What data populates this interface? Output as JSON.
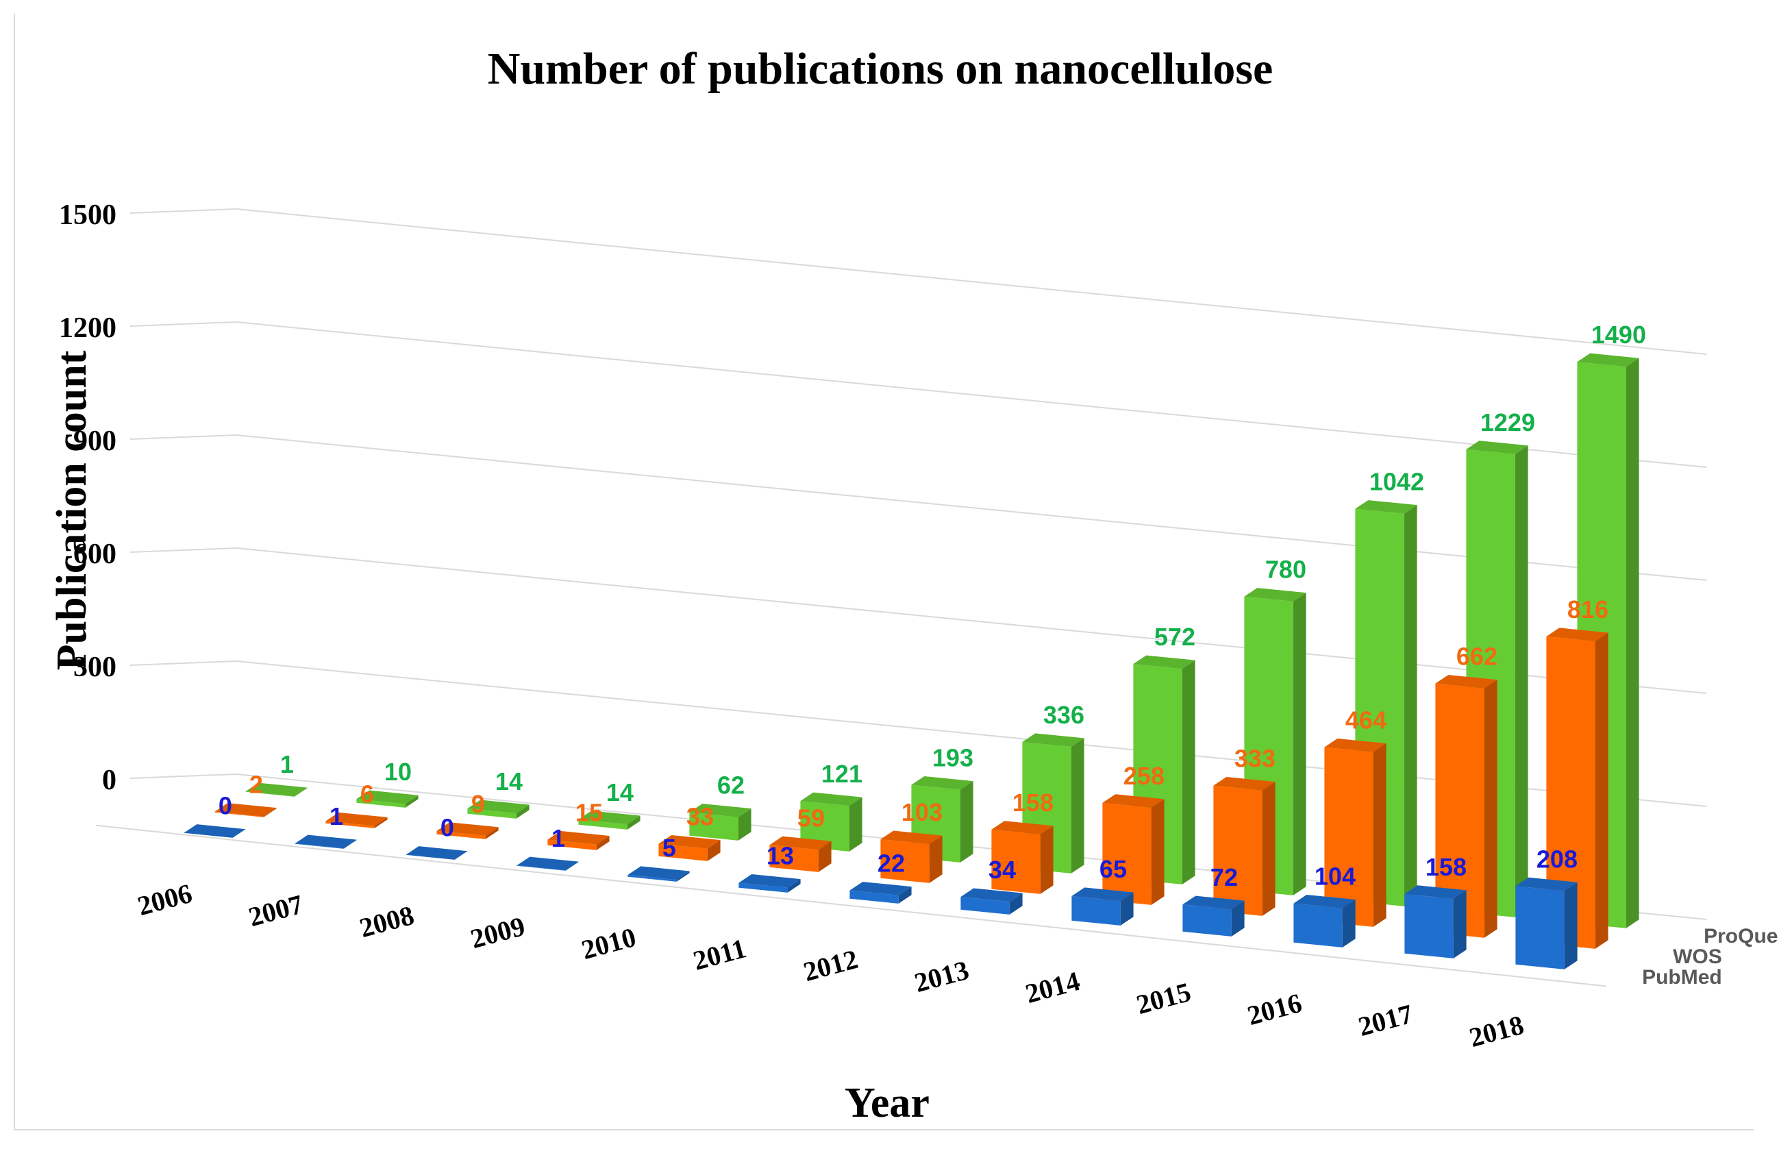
{
  "chart_data": {
    "type": "bar",
    "subtype": "3d-column-grouped",
    "title": "Number of publications on nanocellulose",
    "xlabel": "Year",
    "ylabel": "Publication count",
    "ylim": [
      0,
      1500
    ],
    "yticks": [
      "0",
      "300",
      "600",
      "900",
      "1200",
      "1500"
    ],
    "grid": true,
    "categories": [
      "2006",
      "2007",
      "2008",
      "2009",
      "2010",
      "2011",
      "2012",
      "2013",
      "2014",
      "2015",
      "2016",
      "2017",
      "2018"
    ],
    "series": [
      {
        "name": "PubMed",
        "color": "#1f6fcf",
        "label_color": "#1a1ad6",
        "values": [
          0,
          1,
          0,
          1,
          5,
          13,
          22,
          34,
          65,
          72,
          104,
          158,
          208
        ]
      },
      {
        "name": "WOS",
        "color": "#ff6a00",
        "label_color": "#f06a10",
        "values": [
          2,
          6,
          9,
          15,
          33,
          59,
          103,
          158,
          258,
          333,
          464,
          662,
          816
        ]
      },
      {
        "name": "ProQuest",
        "color": "#66cc33",
        "label_color": "#14b04a",
        "values": [
          1,
          10,
          14,
          14,
          62,
          121,
          193,
          336,
          572,
          780,
          1042,
          1229,
          1490
        ]
      }
    ],
    "depth_labels": [
      "ProQuest",
      "WOS",
      "PubMed"
    ],
    "depth_label_color": "#595959"
  }
}
